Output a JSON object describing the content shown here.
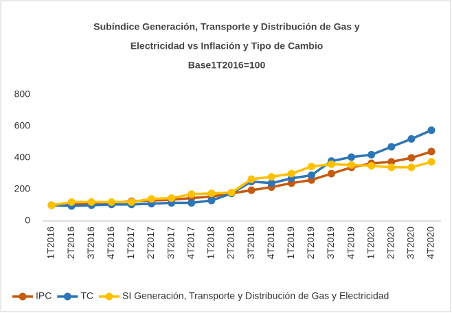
{
  "chart_data": {
    "type": "line",
    "title_lines": [
      "Subíndice Generación, Transporte y Distribución de Gas y",
      "Electricidad vs Inflación y Tipo de Cambio",
      "Base1T2016=100"
    ],
    "categories": [
      "1T2016",
      "2T2016",
      "3T2016",
      "4T2016",
      "1T2017",
      "2T2017",
      "3T2017",
      "4T2017",
      "1T2018",
      "2T2018",
      "3T2018",
      "4T2018",
      "1T2019",
      "2T2019",
      "3T2019",
      "4T2019",
      "1T2020",
      "2T2020",
      "3T2020",
      "4T2020"
    ],
    "series": [
      {
        "name": "IPC",
        "color": "#c55a11",
        "values": [
          100,
          105,
          110,
          115,
          125,
          130,
          135,
          145,
          155,
          175,
          195,
          215,
          240,
          260,
          300,
          340,
          365,
          375,
          400,
          440
        ]
      },
      {
        "name": "TC",
        "color": "#2e75b6",
        "values": [
          100,
          95,
          100,
          105,
          105,
          110,
          115,
          115,
          130,
          175,
          250,
          240,
          270,
          290,
          380,
          405,
          420,
          470,
          520,
          575
        ]
      },
      {
        "name": "SI Generación, Transporte y Distribución de Gas y Electricidad",
        "color": "#ffc000",
        "values": [
          100,
          120,
          120,
          120,
          120,
          140,
          145,
          170,
          175,
          180,
          265,
          280,
          300,
          345,
          360,
          355,
          350,
          340,
          340,
          375
        ]
      }
    ],
    "ylim": [
      0,
      800
    ],
    "yticks": [
      0,
      200,
      400,
      600,
      800
    ],
    "legend": "bottom"
  }
}
